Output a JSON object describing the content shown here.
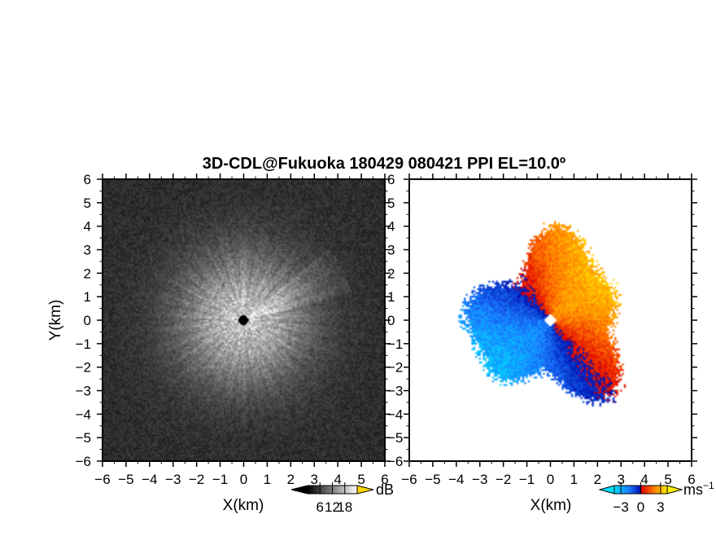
{
  "title": "3D-CDL@Fukuoka 180429 080421 PPI EL=10.0º",
  "chart_data": [
    {
      "type": "heatmap",
      "panel": "backscatter-intensity",
      "xlabel": "X(km)",
      "ylabel": "Y(km)",
      "xlim": [
        -6,
        6
      ],
      "ylim": [
        -6,
        6
      ],
      "xticks": [
        -6,
        -5,
        -4,
        -3,
        -2,
        -1,
        0,
        1,
        2,
        3,
        4,
        5,
        6
      ],
      "yticks": [
        -6,
        -5,
        -4,
        -3,
        -2,
        -1,
        0,
        1,
        2,
        3,
        4,
        5,
        6
      ],
      "colormap": "grayscale",
      "background_color": "#1a1a1a",
      "colorbar": {
        "ticks": [
          6,
          12,
          18
        ],
        "unit": "dB",
        "range": [
          0,
          24
        ]
      },
      "features": {
        "radar_center": [
          0,
          0
        ],
        "strong_sector_azimuth_deg": [
          50,
          75
        ],
        "max_echo_range_km": 4.5
      }
    },
    {
      "type": "heatmap",
      "panel": "doppler-velocity",
      "xlabel": "X(km)",
      "ylabel": "",
      "xlim": [
        -6,
        6
      ],
      "ylim": [
        -6,
        6
      ],
      "xticks": [
        -6,
        -5,
        -4,
        -3,
        -2,
        -1,
        0,
        1,
        2,
        3,
        4,
        5,
        6
      ],
      "yticks": [
        -6,
        -5,
        -4,
        -3,
        -2,
        -1,
        0,
        1,
        2,
        3,
        4,
        5,
        6
      ],
      "colormap": "diverging cyan-blue-red-yellow",
      "colorbar": {
        "ticks": [
          -3,
          0,
          3
        ],
        "unit": "ms",
        "unit_exponent": "−1",
        "range": [
          -4,
          4
        ]
      },
      "colors": {
        "neg_strong": "#00d8f0",
        "neg": "#1a5cff",
        "zero_neg": "#0020c8",
        "zero_pos": "#ff2000",
        "pos": "#ff7a00",
        "pos_strong": "#ffee00"
      },
      "features": {
        "radar_center": [
          0,
          0
        ],
        "approaching_side": "west/southwest (negative velocity)",
        "receding_side": "north/east (positive velocity)",
        "data_extent_km": 4.2
      }
    }
  ]
}
